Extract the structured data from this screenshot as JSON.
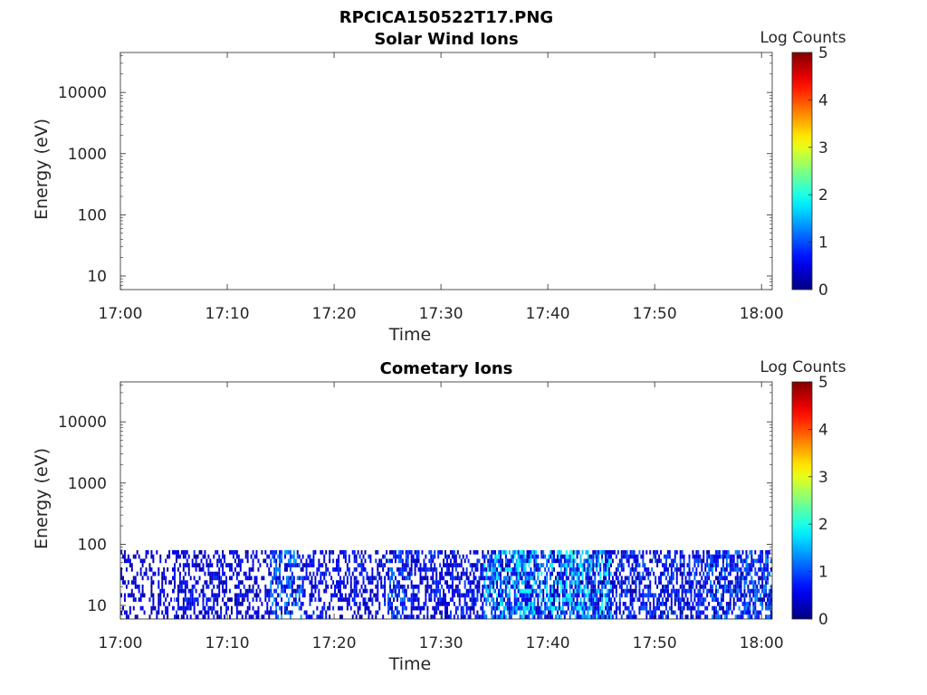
{
  "figure": {
    "title": "RPCICA150522T17.PNG",
    "colormap": "jet",
    "background": "#ffffff"
  },
  "chart_data": [
    {
      "type": "heatmap",
      "title": "Solar Wind Ions",
      "xlabel": "Time",
      "ylabel": "Energy (eV)",
      "y_scale": "log",
      "ylim": [
        6,
        45000
      ],
      "xlim": [
        "17:00",
        "18:01"
      ],
      "x_ticks": [
        "17:00",
        "17:10",
        "17:20",
        "17:30",
        "17:40",
        "17:50",
        "18:00"
      ],
      "y_ticks": [
        "10",
        "100",
        "1000",
        "10000"
      ],
      "colorbar": {
        "label": "Log Counts",
        "range": [
          0,
          5
        ],
        "ticks": [
          "0",
          "1",
          "2",
          "3",
          "4",
          "5"
        ]
      },
      "data": []
    },
    {
      "type": "heatmap",
      "title": "Cometary Ions",
      "xlabel": "Time",
      "ylabel": "Energy (eV)",
      "y_scale": "log",
      "ylim": [
        6,
        45000
      ],
      "xlim": [
        "17:00",
        "18:01"
      ],
      "x_ticks": [
        "17:00",
        "17:10",
        "17:20",
        "17:30",
        "17:40",
        "17:50",
        "18:00"
      ],
      "y_ticks": [
        "10",
        "100",
        "1000",
        "10000"
      ],
      "colorbar": {
        "label": "Log Counts",
        "range": [
          0,
          5
        ],
        "ticks": [
          "0",
          "1",
          "2",
          "3",
          "4",
          "5"
        ]
      },
      "energy_range": [
        6,
        80
      ],
      "time_profile": [
        {
          "start": "17:00",
          "end": "17:05",
          "peak_log_counts": 0.6,
          "fill": 0.35
        },
        {
          "start": "17:05",
          "end": "17:10",
          "peak_log_counts": 0.8,
          "fill": 0.5
        },
        {
          "start": "17:10",
          "end": "17:14",
          "peak_log_counts": 0.7,
          "fill": 0.4
        },
        {
          "start": "17:14",
          "end": "17:17",
          "peak_log_counts": 1.4,
          "fill": 0.55
        },
        {
          "start": "17:17",
          "end": "17:25",
          "peak_log_counts": 0.8,
          "fill": 0.45
        },
        {
          "start": "17:25",
          "end": "17:27",
          "peak_log_counts": 1.2,
          "fill": 0.6
        },
        {
          "start": "17:27",
          "end": "17:34",
          "peak_log_counts": 0.9,
          "fill": 0.55
        },
        {
          "start": "17:34",
          "end": "17:42",
          "peak_log_counts": 1.9,
          "fill": 0.75
        },
        {
          "start": "17:42",
          "end": "17:46",
          "peak_log_counts": 2.0,
          "fill": 0.75
        },
        {
          "start": "17:46",
          "end": "17:50",
          "peak_log_counts": 1.1,
          "fill": 0.55
        },
        {
          "start": "17:50",
          "end": "17:55",
          "peak_log_counts": 1.0,
          "fill": 0.6
        },
        {
          "start": "17:55",
          "end": "18:01",
          "peak_log_counts": 1.3,
          "fill": 0.65
        }
      ]
    }
  ]
}
